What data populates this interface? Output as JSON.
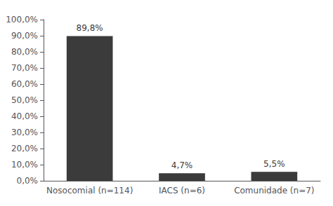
{
  "chart_data": {
    "type": "bar",
    "categories": [
      "Nosocomial (n=114)",
      "IACS (n=6)",
      "Comunidade (n=7)"
    ],
    "values": [
      89.8,
      4.7,
      5.5
    ],
    "value_labels": [
      "89,8%",
      "4,7%",
      "5,5%"
    ],
    "color": "#3b3b3b",
    "ylim": [
      0,
      100
    ],
    "yticks": [
      {
        "value": 0,
        "label": "0,0%"
      },
      {
        "value": 10,
        "label": "10,0%"
      },
      {
        "value": 20,
        "label": "20,0%"
      },
      {
        "value": 30,
        "label": "30,0%"
      },
      {
        "value": 40,
        "label": "40,0%"
      },
      {
        "value": 50,
        "label": "50,0%"
      },
      {
        "value": 60,
        "label": "60,0%"
      },
      {
        "value": 70,
        "label": "70,0%"
      },
      {
        "value": 80,
        "label": "80,0%"
      },
      {
        "value": 90,
        "label": "90,0%"
      },
      {
        "value": 100,
        "label": "100,0%"
      }
    ],
    "grid": false,
    "data_labels": true
  }
}
